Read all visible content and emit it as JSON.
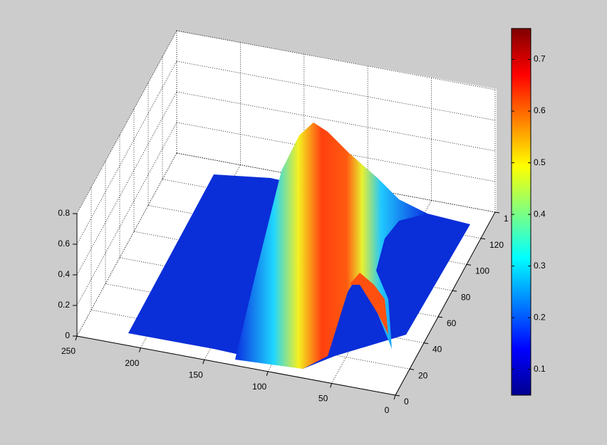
{
  "chart_data": {
    "type": "surface",
    "xlim": [
      0,
      250
    ],
    "xticks": [
      0,
      50,
      100,
      150,
      200,
      250
    ],
    "ylim": [
      0,
      140
    ],
    "yticks": [
      0,
      20,
      40,
      60,
      80,
      100,
      120,
      {
        "value": 140,
        "label": "1"
      }
    ],
    "zlim": [
      0,
      0.8
    ],
    "zticks": [
      0,
      0.2,
      0.4,
      0.6,
      0.8
    ],
    "clim": [
      0.05,
      0.76
    ],
    "cticks": [
      0.1,
      0.2,
      0.3,
      0.4,
      0.5,
      0.6,
      0.7
    ],
    "colormap": "jet",
    "grid": true
  }
}
